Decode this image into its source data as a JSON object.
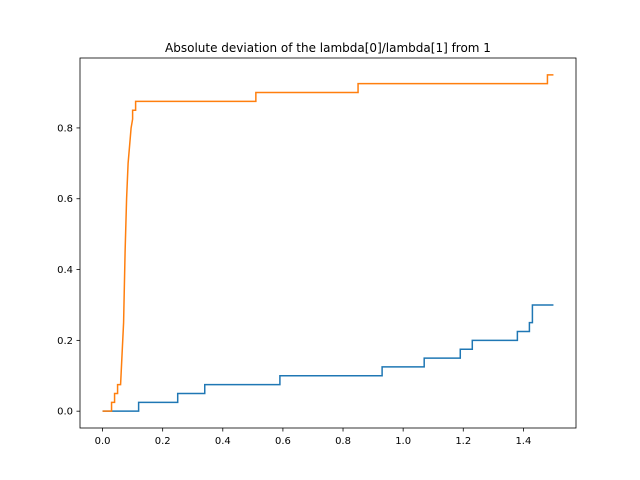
{
  "chart_data": {
    "type": "line",
    "title": "Absolute deviation of the lambda[0]/lambda[1] from 1",
    "xlabel": "",
    "ylabel": "",
    "xlim": [
      -0.075,
      1.575
    ],
    "ylim": [
      -0.0475,
      0.9975
    ],
    "xticks": [
      0.0,
      0.2,
      0.4,
      0.6,
      0.8,
      1.0,
      1.2,
      1.4
    ],
    "xtick_labels": [
      "0.0",
      "0.2",
      "0.4",
      "0.6",
      "0.8",
      "1.0",
      "1.2",
      "1.4"
    ],
    "yticks": [
      0.0,
      0.2,
      0.4,
      0.6,
      0.8
    ],
    "ytick_labels": [
      "0.0",
      "0.2",
      "0.4",
      "0.6",
      "0.8"
    ],
    "grid": false,
    "legend": null,
    "series": [
      {
        "color": "#1f77b4",
        "step": true,
        "x": [
          0.0,
          0.12,
          0.25,
          0.34,
          0.59,
          0.93,
          1.07,
          1.19,
          1.23,
          1.38,
          1.4,
          1.42,
          1.43,
          1.5
        ],
        "y": [
          0.0,
          0.025,
          0.05,
          0.075,
          0.1,
          0.125,
          0.15,
          0.175,
          0.2,
          0.225,
          0.225,
          0.25,
          0.3,
          0.3
        ]
      },
      {
        "color": "#ff7f0e",
        "step": false,
        "x": [
          0.0,
          0.03,
          0.03,
          0.04,
          0.04,
          0.05,
          0.05,
          0.06,
          0.07,
          0.075,
          0.08,
          0.085,
          0.09,
          0.095,
          0.1,
          0.1,
          0.11,
          0.11,
          0.51,
          0.51,
          0.85,
          0.85,
          1.48,
          1.48,
          1.5
        ],
        "y": [
          0.0,
          0.0,
          0.025,
          0.025,
          0.05,
          0.05,
          0.075,
          0.075,
          0.25,
          0.45,
          0.6,
          0.7,
          0.75,
          0.8,
          0.825,
          0.85,
          0.85,
          0.875,
          0.875,
          0.9,
          0.9,
          0.925,
          0.925,
          0.95,
          0.95
        ]
      }
    ]
  }
}
